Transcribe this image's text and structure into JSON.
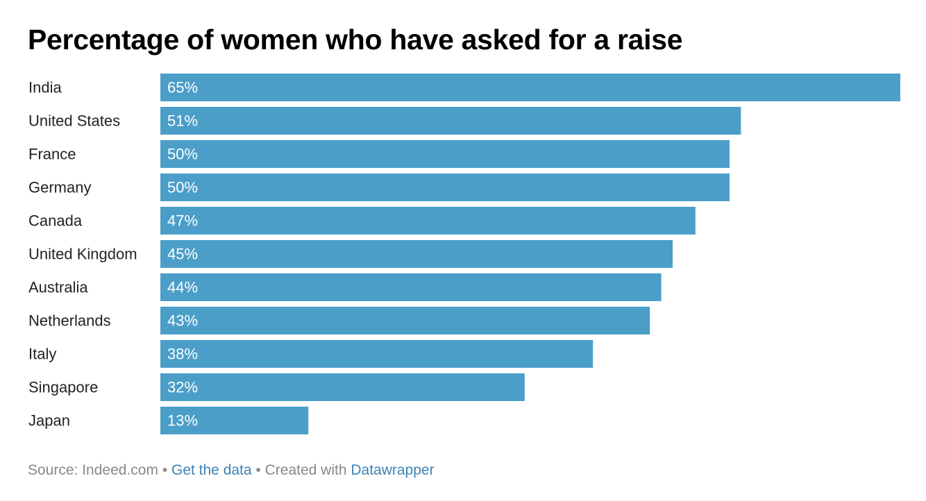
{
  "chart_data": {
    "type": "bar",
    "orientation": "horizontal",
    "title": "Percentage of women who have asked for a raise",
    "categories": [
      "India",
      "United States",
      "France",
      "Germany",
      "Canada",
      "United Kingdom",
      "Australia",
      "Netherlands",
      "Italy",
      "Singapore",
      "Japan"
    ],
    "values": [
      65,
      51,
      50,
      50,
      47,
      45,
      44,
      43,
      38,
      32,
      13
    ],
    "value_labels": [
      "65%",
      "51%",
      "50%",
      "50%",
      "47%",
      "45%",
      "44%",
      "43%",
      "38%",
      "32%",
      "13%"
    ],
    "xlim": [
      0,
      65
    ],
    "grid": false,
    "legend": "none",
    "bar_color": "#4b9ec8"
  },
  "footer": {
    "source": "Source: Indeed.com",
    "separator": " • ",
    "get_data_link": "Get the data",
    "created_with": "Created with",
    "tool_link": "Datawrapper"
  },
  "colors": {
    "bar": "#4b9ec8",
    "link": "#3d82b5",
    "footer_text": "#888888"
  }
}
